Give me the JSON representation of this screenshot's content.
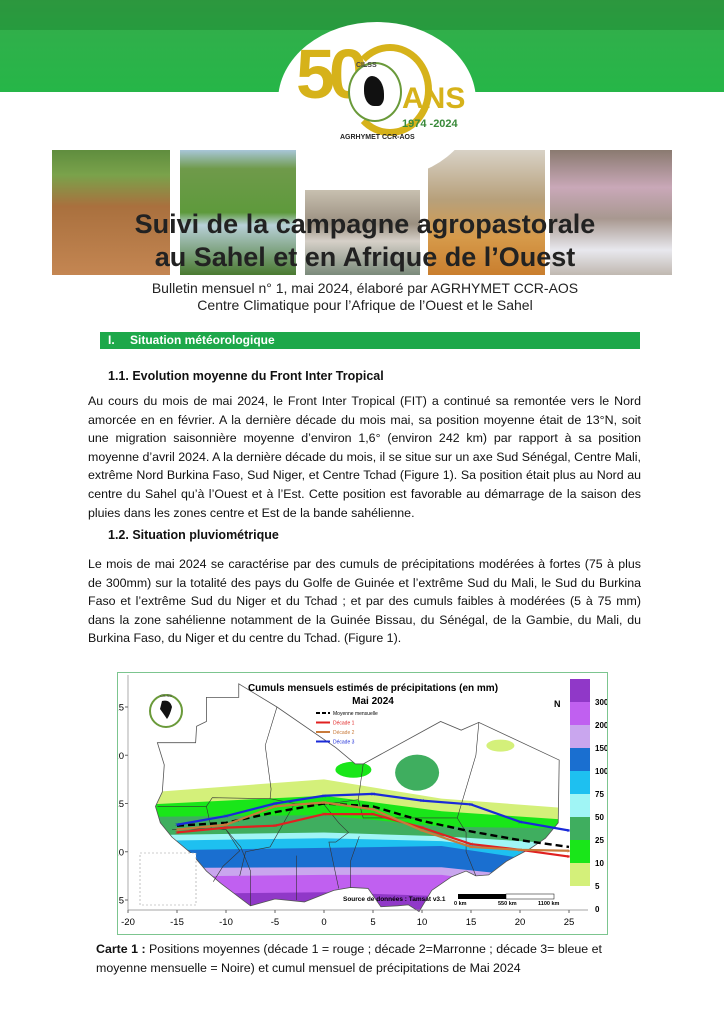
{
  "header": {
    "logo": {
      "number": "50",
      "emblem_text": "CILSS",
      "suffix": "ANS",
      "years": "1974 -2024",
      "organization": "AGRHYMET CCR-AOS"
    },
    "title_line1": "Suivi de la campagne agropastorale",
    "title_line2": "au Sahel et en Afrique de l’Ouest",
    "subtitle_line1": "Bulletin mensuel n° 1, mai 2024, élaboré par AGRHYMET CCR-AOS",
    "subtitle_line2": "Centre Climatique pour l’Afrique de l’Ouest et le Sahel",
    "brand_color": "#1da84a"
  },
  "section": {
    "number": "I.",
    "title": "Situation météorologique"
  },
  "subsection1": {
    "title": "1.1. Evolution moyenne du Front Inter Tropical",
    "text": "Au cours du mois de mai 2024, le Front Inter Tropical (FIT) a continué sa remontée vers le Nord amorcée en en février. A la dernière décade du mois mai, sa position moyenne était de 13°N, soit une migration saisonnière moyenne d’environ 1,6° (environ 242 km) par rapport à sa position moyenne d’avril 2024. A la dernière décade du mois, il se situe sur un axe Sud Sénégal, Centre Mali, extrême Nord Burkina Faso, Sud Niger, et Centre Tchad (Figure 1). Sa position était plus au Nord au centre du Sahel qu’à l’Ouest et à l’Est. Cette position est favorable au démarrage de la saison des pluies dans les zones centre et Est de la bande sahélienne."
  },
  "subsection2": {
    "title": "1.2. Situation pluviométrique",
    "text": "Le mois de mai 2024 se caractérise par des cumuls de précipitations modérées à fortes (75 à plus de 300mm) sur la totalité des pays du Golfe de Guinée et l’extrême Sud du Mali, le Sud du Burkina Faso et l’extrême Sud du Niger et du Tchad ; et par des cumuls faibles à modérées (5 à 75 mm) dans la zone sahélienne notamment de la Guinée Bissau, du Sénégal, de la Gambie, du Mali, du Burkina Faso, du Niger et du centre du Tchad. (Figure 1)."
  },
  "chart_data": {
    "type": "line",
    "title": "Cumuls mensuels estimés de précipitations (en mm)",
    "subtitle": "Mai 2024",
    "x_ticks": [
      -20,
      -15,
      -10,
      -5,
      0,
      5,
      10,
      15,
      20,
      25
    ],
    "y_ticks": [
      5,
      10,
      15,
      20,
      25
    ],
    "xlim": [
      -20,
      25
    ],
    "ylim": [
      3.5,
      27.5
    ],
    "x": [
      -15,
      -10,
      -5,
      0,
      5,
      10,
      15,
      20,
      25
    ],
    "series": [
      {
        "name": "Moyenne mensuelle",
        "color": "#000000",
        "style": "dashed",
        "values": [
          12.7,
          13.0,
          14.1,
          15.0,
          14.7,
          13.2,
          12.1,
          11.2,
          10.5
        ]
      },
      {
        "name": "Décade 1",
        "color": "#e02020",
        "style": "solid",
        "values": [
          12.0,
          12.5,
          12.7,
          13.9,
          13.9,
          12.5,
          10.8,
          10.2,
          9.5
        ]
      },
      {
        "name": "Décade 2",
        "color": "#c87a3a",
        "style": "solid",
        "values": [
          12.3,
          12.8,
          14.7,
          15.1,
          14.4,
          12.2,
          10.5,
          10.2,
          10.1
        ]
      },
      {
        "name": "Décade 3",
        "color": "#1a2ad8",
        "style": "solid",
        "values": [
          12.8,
          13.7,
          15.0,
          15.8,
          16.0,
          15.3,
          14.9,
          13.1,
          12.2
        ]
      }
    ],
    "colorbar": {
      "ticks": [
        "0",
        "5",
        "10",
        "25",
        "50",
        "75",
        "100",
        "150",
        "200",
        "300"
      ],
      "colors": [
        "#ffffff",
        "#d4f07a",
        "#19e619",
        "#3fae5f",
        "#a0f5f5",
        "#1ec0f0",
        "#1a6fd0",
        "#c9a6ee",
        "#c060f0",
        "#9038c8"
      ]
    },
    "north_label": "N",
    "source": "Source de données : Tamsat v3.1",
    "scale_labels": [
      "0 km",
      "550 km",
      "1100 km"
    ],
    "logo_text": "CILSS"
  },
  "caption": {
    "label": "Carte 1 :",
    "text": " Positions moyennes (décade 1 = rouge ; décade 2=Marronne ; décade 3= bleue et moyenne mensuelle = Noire) et cumul mensuel de précipitations de Mai 2024"
  }
}
